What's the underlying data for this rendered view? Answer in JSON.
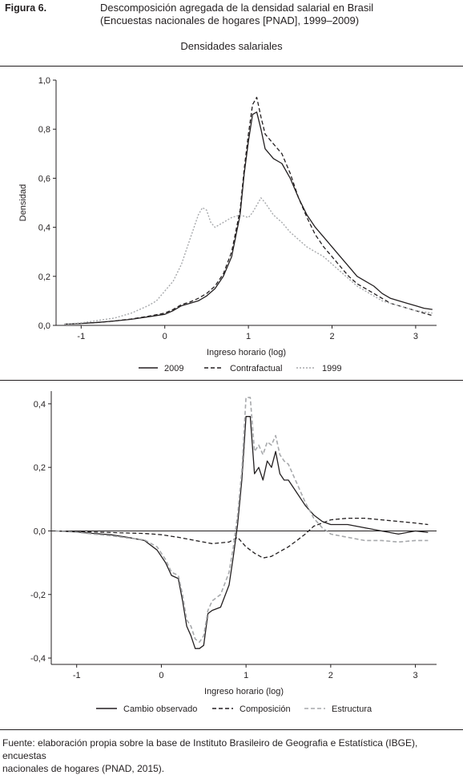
{
  "figure_label": "Figura 6.",
  "title_line1": "Descomposición agregada de la densidad salarial en Brasil",
  "title_line2": "(Encuestas nacionales de hogares [PNAD], 1999–2009)",
  "subtitle": "Densidades salariales",
  "source_line1": "Fuente: elaboración propia sobre la base de Instituto Brasileiro de Geografia e Estatística (IBGE), encuestas",
  "source_line2": "nacionales de hogares (PNAD, 2015).",
  "colors": {
    "black": "#231f20",
    "gray": "#a7a9ac"
  },
  "chart_data": [
    {
      "type": "line",
      "title": "Densidades salariales",
      "xlabel": "Ingreso horario (log)",
      "ylabel": "Densidad",
      "xlim": [
        -1.3,
        3.25
      ],
      "ylim": [
        0,
        1.0
      ],
      "x_ticks": [
        -1,
        0,
        1,
        2,
        3
      ],
      "x_tick_labels": [
        "-1",
        "0",
        "1",
        "2",
        "3"
      ],
      "y_ticks": [
        0,
        0.2,
        0.4,
        0.6,
        0.8,
        1.0
      ],
      "y_tick_labels": [
        "0,0",
        "0,2",
        "0,4",
        "0,6",
        "0,8",
        "1,0"
      ],
      "grid": false,
      "legend_position": "bottom",
      "series": [
        {
          "name": "2009",
          "style": "solid",
          "color": "#231f20",
          "x": [
            -1.2,
            -1.0,
            -0.8,
            -0.6,
            -0.4,
            -0.2,
            0.0,
            0.1,
            0.2,
            0.3,
            0.4,
            0.5,
            0.6,
            0.7,
            0.8,
            0.9,
            0.95,
            1.0,
            1.05,
            1.1,
            1.15,
            1.2,
            1.3,
            1.4,
            1.5,
            1.6,
            1.7,
            1.8,
            1.9,
            2.0,
            2.1,
            2.2,
            2.3,
            2.4,
            2.5,
            2.6,
            2.7,
            2.8,
            2.9,
            3.0,
            3.1,
            3.2
          ],
          "y": [
            0.005,
            0.008,
            0.012,
            0.018,
            0.025,
            0.035,
            0.045,
            0.06,
            0.08,
            0.09,
            0.1,
            0.12,
            0.15,
            0.2,
            0.28,
            0.45,
            0.62,
            0.75,
            0.86,
            0.87,
            0.8,
            0.72,
            0.68,
            0.66,
            0.6,
            0.52,
            0.45,
            0.4,
            0.36,
            0.32,
            0.28,
            0.24,
            0.2,
            0.18,
            0.16,
            0.13,
            0.11,
            0.1,
            0.09,
            0.08,
            0.07,
            0.065
          ]
        },
        {
          "name": "Contrafactual",
          "style": "dashed",
          "color": "#231f20",
          "x": [
            -1.2,
            -1.0,
            -0.8,
            -0.6,
            -0.4,
            -0.2,
            0.0,
            0.1,
            0.2,
            0.3,
            0.4,
            0.5,
            0.6,
            0.7,
            0.8,
            0.9,
            0.95,
            1.0,
            1.05,
            1.1,
            1.15,
            1.2,
            1.3,
            1.4,
            1.5,
            1.6,
            1.7,
            1.8,
            1.9,
            2.0,
            2.1,
            2.2,
            2.3,
            2.4,
            2.5,
            2.6,
            2.7,
            2.8,
            2.9,
            3.0,
            3.1,
            3.2
          ],
          "y": [
            0.005,
            0.008,
            0.012,
            0.018,
            0.026,
            0.037,
            0.05,
            0.065,
            0.085,
            0.095,
            0.11,
            0.13,
            0.16,
            0.21,
            0.3,
            0.47,
            0.64,
            0.78,
            0.9,
            0.93,
            0.85,
            0.78,
            0.74,
            0.7,
            0.62,
            0.52,
            0.44,
            0.37,
            0.32,
            0.28,
            0.24,
            0.2,
            0.17,
            0.15,
            0.13,
            0.11,
            0.09,
            0.08,
            0.07,
            0.06,
            0.05,
            0.04
          ]
        },
        {
          "name": "1999",
          "style": "dotted",
          "color": "#a7a9ac",
          "x": [
            -1.2,
            -1.0,
            -0.8,
            -0.6,
            -0.4,
            -0.2,
            -0.1,
            0.0,
            0.1,
            0.2,
            0.3,
            0.4,
            0.45,
            0.5,
            0.55,
            0.6,
            0.7,
            0.8,
            0.9,
            1.0,
            1.05,
            1.1,
            1.15,
            1.2,
            1.3,
            1.4,
            1.5,
            1.6,
            1.7,
            1.8,
            1.9,
            2.0,
            2.1,
            2.2,
            2.3,
            2.4,
            2.5,
            2.6,
            2.7,
            2.8,
            2.9,
            3.0,
            3.1,
            3.2
          ],
          "y": [
            0.005,
            0.01,
            0.02,
            0.03,
            0.05,
            0.08,
            0.1,
            0.14,
            0.18,
            0.25,
            0.35,
            0.45,
            0.48,
            0.47,
            0.42,
            0.4,
            0.42,
            0.44,
            0.45,
            0.44,
            0.46,
            0.49,
            0.52,
            0.5,
            0.45,
            0.42,
            0.38,
            0.35,
            0.32,
            0.3,
            0.28,
            0.25,
            0.22,
            0.19,
            0.16,
            0.14,
            0.12,
            0.1,
            0.09,
            0.08,
            0.07,
            0.06,
            0.055,
            0.05
          ]
        }
      ]
    },
    {
      "type": "line",
      "xlabel": "Ingreso horario (log)",
      "ylabel": "",
      "xlim": [
        -1.3,
        3.25
      ],
      "ylim": [
        -0.42,
        0.44
      ],
      "x_ticks": [
        -1,
        0,
        1,
        2,
        3
      ],
      "x_tick_labels": [
        "-1",
        "0",
        "1",
        "2",
        "3"
      ],
      "y_ticks": [
        -0.4,
        -0.2,
        0,
        0.2,
        0.4
      ],
      "y_tick_labels": [
        "-0,4",
        "-0,2",
        "0,0",
        "0,2",
        "0,4"
      ],
      "grid": false,
      "zero_line": true,
      "legend_position": "bottom",
      "series": [
        {
          "name": "Cambio observado",
          "style": "solid",
          "color": "#231f20",
          "x": [
            -1.25,
            -1.0,
            -0.8,
            -0.6,
            -0.4,
            -0.2,
            -0.05,
            0.05,
            0.12,
            0.2,
            0.25,
            0.3,
            0.35,
            0.4,
            0.45,
            0.5,
            0.55,
            0.6,
            0.7,
            0.8,
            0.85,
            0.9,
            0.95,
            1.0,
            1.05,
            1.1,
            1.15,
            1.2,
            1.25,
            1.3,
            1.35,
            1.4,
            1.45,
            1.5,
            1.6,
            1.7,
            1.8,
            1.9,
            2.0,
            2.2,
            2.4,
            2.6,
            2.8,
            3.0,
            3.15
          ],
          "y": [
            0.0,
            -0.003,
            -0.008,
            -0.012,
            -0.02,
            -0.03,
            -0.06,
            -0.1,
            -0.14,
            -0.15,
            -0.22,
            -0.3,
            -0.33,
            -0.37,
            -0.37,
            -0.36,
            -0.26,
            -0.25,
            -0.24,
            -0.17,
            -0.08,
            0.02,
            0.16,
            0.36,
            0.36,
            0.18,
            0.2,
            0.16,
            0.22,
            0.2,
            0.25,
            0.18,
            0.16,
            0.16,
            0.12,
            0.08,
            0.05,
            0.03,
            0.02,
            0.02,
            0.01,
            0.0,
            -0.01,
            0.0,
            -0.005
          ]
        },
        {
          "name": "Composición",
          "style": "dashed",
          "color": "#231f20",
          "x": [
            -1.25,
            -1.0,
            -0.6,
            -0.2,
            0.0,
            0.2,
            0.4,
            0.6,
            0.8,
            0.9,
            1.0,
            1.1,
            1.2,
            1.3,
            1.4,
            1.5,
            1.6,
            1.7,
            1.8,
            1.9,
            2.0,
            2.2,
            2.4,
            2.6,
            2.8,
            3.0,
            3.15
          ],
          "y": [
            0.0,
            -0.002,
            -0.005,
            -0.008,
            -0.012,
            -0.02,
            -0.03,
            -0.04,
            -0.035,
            -0.02,
            -0.05,
            -0.07,
            -0.085,
            -0.08,
            -0.065,
            -0.05,
            -0.03,
            -0.01,
            0.015,
            0.025,
            0.035,
            0.04,
            0.04,
            0.035,
            0.03,
            0.025,
            0.02
          ]
        },
        {
          "name": "Estructura",
          "style": "dashed-gray",
          "color": "#a7a9ac",
          "x": [
            -1.25,
            -1.0,
            -0.8,
            -0.6,
            -0.4,
            -0.2,
            -0.05,
            0.05,
            0.12,
            0.2,
            0.25,
            0.3,
            0.35,
            0.4,
            0.45,
            0.5,
            0.55,
            0.6,
            0.7,
            0.8,
            0.85,
            0.9,
            0.95,
            1.0,
            1.05,
            1.1,
            1.15,
            1.2,
            1.25,
            1.3,
            1.35,
            1.4,
            1.45,
            1.5,
            1.6,
            1.7,
            1.8,
            1.9,
            2.0,
            2.2,
            2.4,
            2.6,
            2.8,
            3.0,
            3.15
          ],
          "y": [
            0.0,
            -0.004,
            -0.01,
            -0.015,
            -0.022,
            -0.028,
            -0.05,
            -0.09,
            -0.13,
            -0.14,
            -0.2,
            -0.28,
            -0.3,
            -0.34,
            -0.35,
            -0.33,
            -0.25,
            -0.22,
            -0.2,
            -0.13,
            -0.05,
            0.05,
            0.19,
            0.42,
            0.42,
            0.25,
            0.27,
            0.24,
            0.28,
            0.27,
            0.3,
            0.24,
            0.22,
            0.21,
            0.15,
            0.09,
            0.04,
            0.01,
            -0.01,
            -0.02,
            -0.03,
            -0.03,
            -0.035,
            -0.03,
            -0.03
          ]
        }
      ]
    }
  ]
}
